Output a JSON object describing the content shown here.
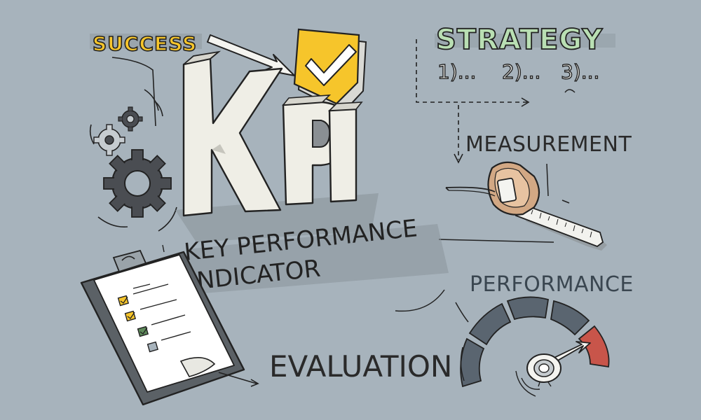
{
  "labels": {
    "success": "SUCCESS",
    "strategy": "STRATEGY",
    "steps": [
      "1)...",
      "2)...",
      "3)..."
    ],
    "measurement": "MEASUREMENT",
    "kpi": "KPI",
    "key_performance": "KEY PERFORMANCE",
    "indicator": "INDICATOR",
    "performance": "PERFORMANCE",
    "evaluation": "EVALUATION"
  },
  "colors": {
    "background": "#a7b3bc",
    "ink": "#222222",
    "success_yellow": "#f6c52b",
    "strategy_green": "#b9dfb3",
    "kpi_block": "#efeee6",
    "gear": "#4a4d52",
    "gauge_dark": "#5a6570",
    "gauge_red": "#c8554a",
    "shadow": "#8b949b"
  },
  "clipboard": {
    "checkbox_states": [
      "checked",
      "checked",
      "checked",
      "empty"
    ]
  }
}
